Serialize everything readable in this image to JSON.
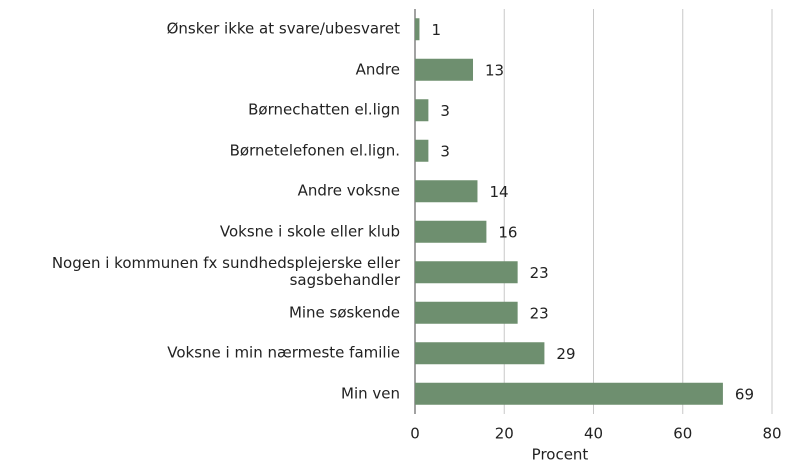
{
  "chart_data": {
    "type": "bar",
    "orientation": "horizontal",
    "categories": [
      "Ønsker ikke at svare/ubesvaret",
      "Andre",
      "Børnechatten el.lign",
      "Børnetelefonen el.lign.",
      "Andre voksne",
      "Voksne i skole eller klub",
      "Nogen i kommunen fx sundhedsplejerske eller sagsbehandler",
      "Mine søskende",
      "Voksne i min nærmeste familie",
      "Min ven"
    ],
    "values": [
      1,
      13,
      3,
      3,
      14,
      16,
      23,
      23,
      29,
      69
    ],
    "color": "#6e8f6f",
    "xlim": [
      0,
      80
    ],
    "xticks": [
      0,
      20,
      40,
      60,
      80
    ],
    "xlabel": "Procent",
    "grid": true
  }
}
